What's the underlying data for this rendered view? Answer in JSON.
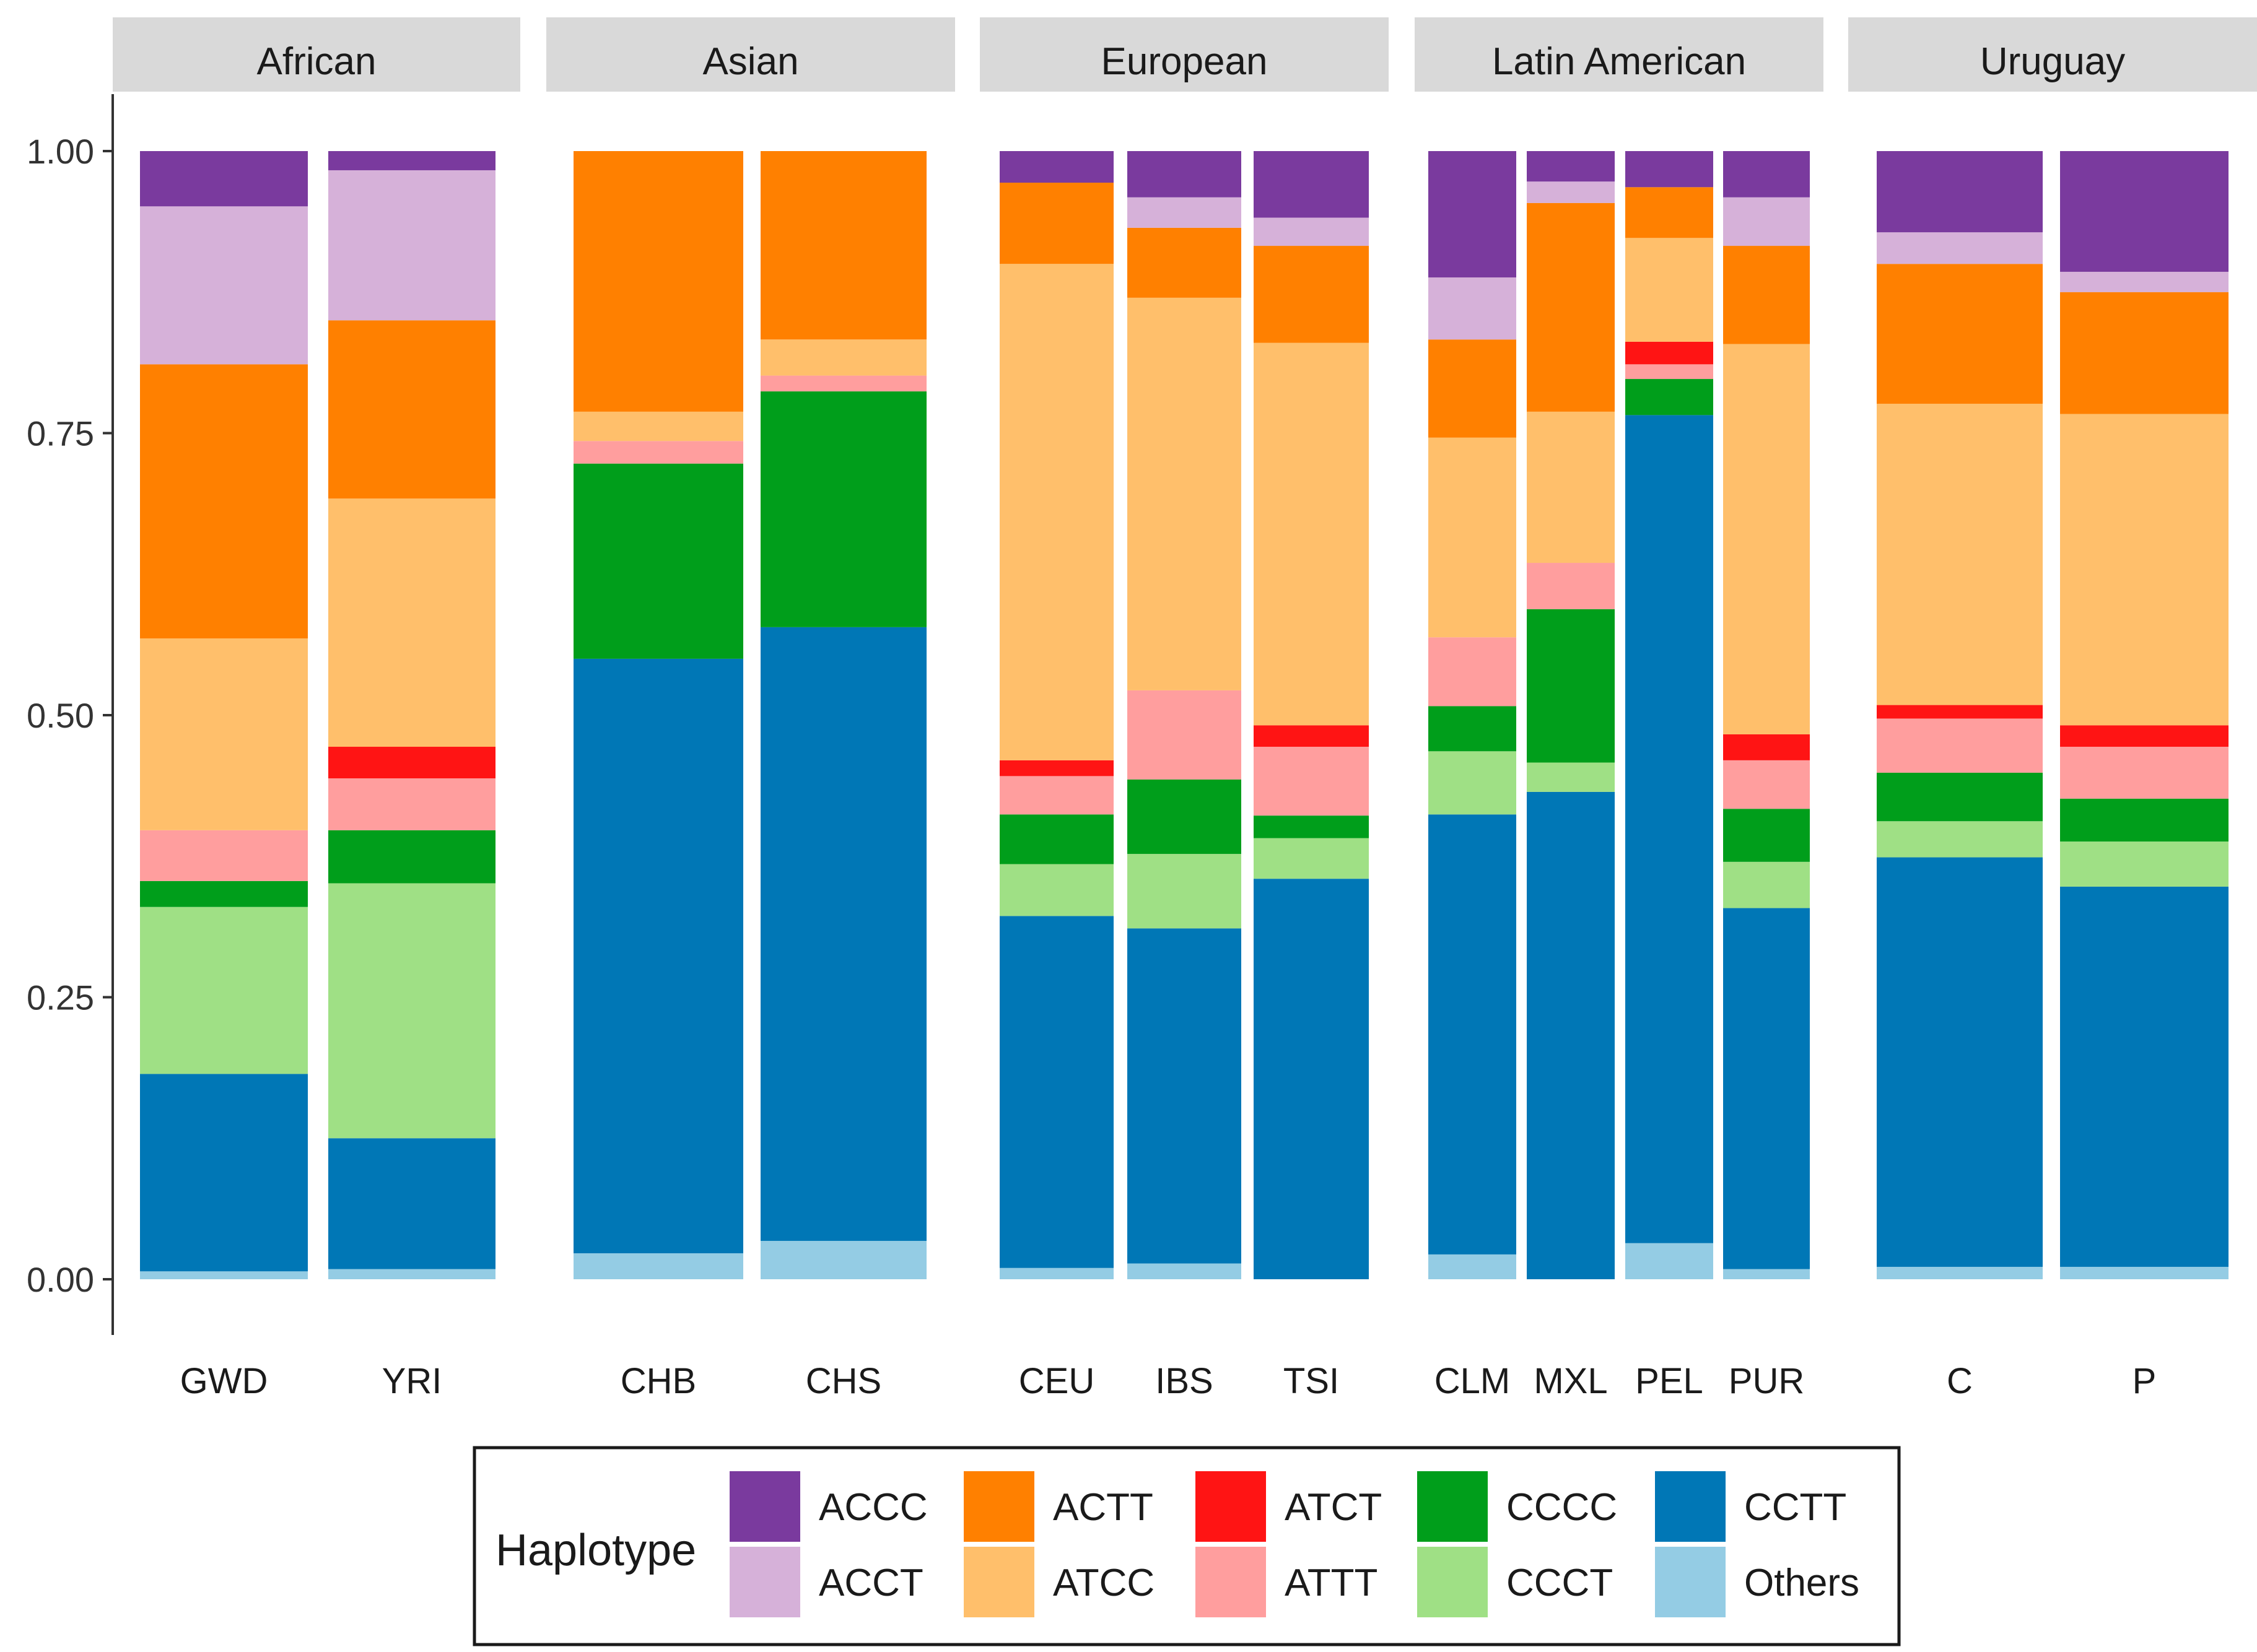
{
  "chart_data": {
    "type": "bar",
    "stacked": true,
    "ylim": [
      0,
      1
    ],
    "yticks": [
      "0.00",
      "0.25",
      "0.50",
      "0.75",
      "1.00"
    ],
    "ytick_values": [
      0,
      0.25,
      0.5,
      0.75,
      1.0
    ],
    "legend": {
      "title": "Haplotype",
      "position": "bottom",
      "order": [
        "ACCC",
        "ACCT",
        "ACTT",
        "ATCC",
        "ATCT",
        "ATTT",
        "CCCC",
        "CCCT",
        "CCTT",
        "Others"
      ]
    },
    "colors": {
      "ACCC": "#7a3a9e",
      "ACCT": "#d6b1d9",
      "ACTT": "#ff8000",
      "ATCC": "#ffbf6b",
      "ATCT": "#ff1414",
      "ATTT": "#ff9e9e",
      "CCCC": "#009e1b",
      "CCCT": "#9fe085",
      "CCTT": "#0077b6",
      "Others": "#94cce4"
    },
    "stack_order": [
      "Others",
      "CCTT",
      "CCCT",
      "CCCC",
      "ATTT",
      "ATCT",
      "ATCC",
      "ACTT",
      "ACCT",
      "ACCC"
    ],
    "facets": [
      {
        "label": "African",
        "bars": [
          {
            "name": "GWD",
            "values": {
              "Others": 0.007,
              "CCTT": 0.175,
              "CCCT": 0.148,
              "CCCC": 0.023,
              "ATTT": 0.045,
              "ATCT": 0.0,
              "ATCC": 0.17,
              "ACTT": 0.243,
              "ACCT": 0.14,
              "ACCC": 0.049
            }
          },
          {
            "name": "YRI",
            "values": {
              "Others": 0.009,
              "CCTT": 0.116,
              "CCCT": 0.226,
              "CCCC": 0.047,
              "ATTT": 0.046,
              "ATCT": 0.028,
              "ATCC": 0.22,
              "ACTT": 0.158,
              "ACCT": 0.133,
              "ACCC": 0.017
            }
          }
        ]
      },
      {
        "label": "Asian",
        "bars": [
          {
            "name": "CHB",
            "values": {
              "Others": 0.023,
              "CCTT": 0.527,
              "CCCT": 0.0,
              "CCCC": 0.173,
              "ATTT": 0.02,
              "ATCT": 0.0,
              "ATCC": 0.026,
              "ACTT": 0.231,
              "ACCT": 0.0,
              "ACCC": 0.0
            }
          },
          {
            "name": "CHS",
            "values": {
              "Others": 0.034,
              "CCTT": 0.544,
              "CCCT": 0.0,
              "CCCC": 0.209,
              "ATTT": 0.014,
              "ATCT": 0.0,
              "ATCC": 0.032,
              "ACTT": 0.167,
              "ACCT": 0.0,
              "ACCC": 0.0
            }
          }
        ]
      },
      {
        "label": "European",
        "bars": [
          {
            "name": "CEU",
            "values": {
              "Others": 0.01,
              "CCTT": 0.312,
              "CCCT": 0.046,
              "CCCC": 0.044,
              "ATTT": 0.034,
              "ATCT": 0.014,
              "ATCC": 0.44,
              "ACTT": 0.072,
              "ACCT": 0.0,
              "ACCC": 0.028
            }
          },
          {
            "name": "IBS",
            "values": {
              "Others": 0.014,
              "CCTT": 0.297,
              "CCCT": 0.066,
              "CCCC": 0.066,
              "ATTT": 0.079,
              "ATCT": 0.0,
              "ATCC": 0.348,
              "ACTT": 0.062,
              "ACCT": 0.027,
              "ACCC": 0.041
            }
          },
          {
            "name": "TSI",
            "values": {
              "Others": 0.0,
              "CCTT": 0.355,
              "CCCT": 0.036,
              "CCCC": 0.02,
              "ATTT": 0.061,
              "ATCT": 0.019,
              "ATCC": 0.339,
              "ACTT": 0.086,
              "ACCT": 0.025,
              "ACCC": 0.059
            }
          }
        ]
      },
      {
        "label": "Latin American",
        "bars": [
          {
            "name": "CLM",
            "values": {
              "Others": 0.022,
              "CCTT": 0.39,
              "CCCT": 0.056,
              "CCCC": 0.04,
              "ATTT": 0.061,
              "ATCT": 0.0,
              "ATCC": 0.177,
              "ACTT": 0.087,
              "ACCT": 0.055,
              "ACCC": 0.112
            }
          },
          {
            "name": "MXL",
            "values": {
              "Others": 0.0,
              "CCTT": 0.432,
              "CCCT": 0.026,
              "CCCC": 0.136,
              "ATTT": 0.041,
              "ATCT": 0.0,
              "ATCC": 0.134,
              "ACTT": 0.185,
              "ACCT": 0.019,
              "ACCC": 0.027
            }
          },
          {
            "name": "PEL",
            "values": {
              "Others": 0.032,
              "CCTT": 0.734,
              "CCCT": 0.0,
              "CCCC": 0.032,
              "ATTT": 0.013,
              "ATCT": 0.02,
              "ATCC": 0.092,
              "ACTT": 0.045,
              "ACCT": 0.0,
              "ACCC": 0.032
            }
          },
          {
            "name": "PUR",
            "values": {
              "Others": 0.009,
              "CCTT": 0.32,
              "CCCT": 0.041,
              "CCCC": 0.047,
              "ATTT": 0.043,
              "ATCT": 0.023,
              "ATCC": 0.346,
              "ACTT": 0.087,
              "ACCT": 0.043,
              "ACCC": 0.041
            }
          }
        ]
      },
      {
        "label": "Uruguay",
        "bars": [
          {
            "name": "C",
            "values": {
              "Others": 0.011,
              "CCTT": 0.363,
              "CCCT": 0.032,
              "CCCC": 0.043,
              "ATTT": 0.048,
              "ATCT": 0.012,
              "ATCC": 0.267,
              "ACTT": 0.124,
              "ACCT": 0.028,
              "ACCC": 0.072
            }
          },
          {
            "name": "P",
            "values": {
              "Others": 0.011,
              "CCTT": 0.337,
              "CCCT": 0.04,
              "CCCC": 0.038,
              "ATTT": 0.046,
              "ATCT": 0.019,
              "ATCC": 0.276,
              "ACTT": 0.108,
              "ACCT": 0.018,
              "ACCC": 0.107
            }
          }
        ]
      }
    ]
  }
}
